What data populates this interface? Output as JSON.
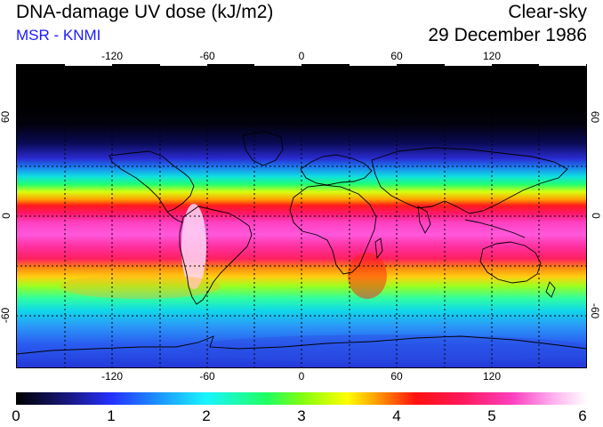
{
  "header": {
    "title": "DNA-damage UV dose (kJ/m2)",
    "subtitle": "MSR - KNMI",
    "mode": "Clear-sky",
    "date": "29 December 1986"
  },
  "map": {
    "lon_ticks": [
      "-120",
      "-60",
      "0",
      "60",
      "120"
    ],
    "lat_ticks_left": [
      "60",
      "0",
      "-60"
    ],
    "lat_ticks_right": [
      "60",
      "0",
      "-60"
    ],
    "gridlines": "dotted every 30 degrees",
    "continent_outline_color": "#000000"
  },
  "colorbar": {
    "ticks": [
      "0",
      "1",
      "2",
      "3",
      "4",
      "5",
      "6"
    ],
    "range": [
      0,
      6
    ],
    "colors": [
      "#000000",
      "#2430ff",
      "#19f5ff",
      "#ffff00",
      "#ff1010",
      "#ff40c0",
      "#ffffff"
    ]
  }
}
